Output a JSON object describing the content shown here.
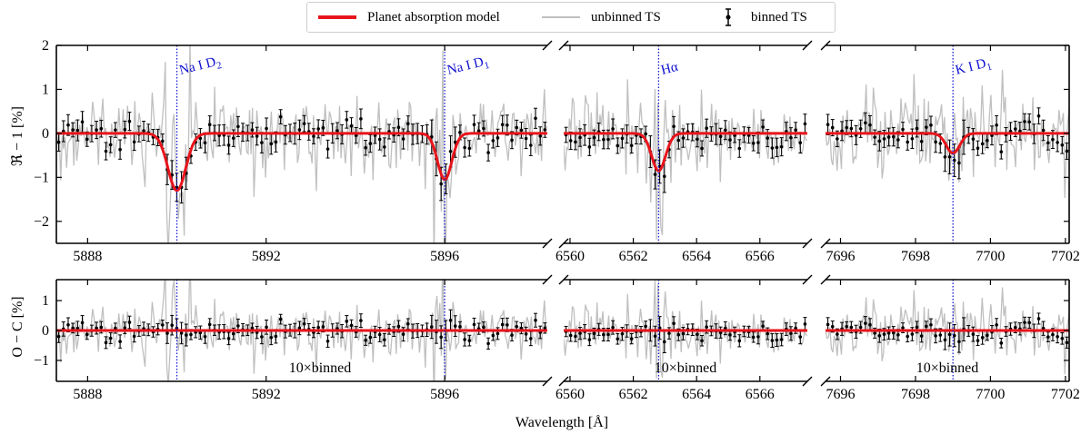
{
  "chart_data": {
    "type": "line",
    "legend": {
      "model": "Planet absorption model",
      "unbinned": "unbinned TS",
      "binned": "binned TS"
    },
    "colors": {
      "model": "#e8141b",
      "unbinned": "#c0c0c0",
      "binned": "#000000",
      "lines": "#1a1ad6",
      "axes": "#000000"
    },
    "xlabel": "Wavelength [Å]",
    "top_ylabel": "ℜ − 1 [%]",
    "bottom_ylabel": "O − C [%]",
    "top_ylim": [
      -2.5,
      2.0
    ],
    "top_yticks": [
      -2,
      -1,
      0,
      1,
      2
    ],
    "bottom_ylim": [
      -1.7,
      1.7
    ],
    "bottom_yticks": [
      -1,
      0,
      1
    ],
    "binned_note": "10×binned",
    "segments": [
      {
        "name": "sodium",
        "xlim": [
          5887.3,
          5898.3
        ],
        "xticks": [
          5888,
          5892,
          5896
        ],
        "lines": [
          {
            "x": 5890.0,
            "label_main": "Na I D",
            "label_sub": "2",
            "depth": -1.3,
            "sigma": 0.2
          },
          {
            "x": 5896.0,
            "label_main": "Na I D",
            "label_sub": "1",
            "depth": -1.05,
            "sigma": 0.16
          }
        ]
      },
      {
        "name": "halpha",
        "xlim": [
          6559.8,
          6567.5
        ],
        "xticks": [
          6560,
          6562,
          6564,
          6566
        ],
        "lines": [
          {
            "x": 6562.8,
            "label_main": "Hα",
            "label_sub": "",
            "depth": -0.85,
            "sigma": 0.22
          }
        ]
      },
      {
        "name": "potassium",
        "xlim": [
          7695.6,
          7702.1
        ],
        "xticks": [
          7696,
          7698,
          7700,
          7702
        ],
        "lines": [
          {
            "x": 7699.0,
            "label_main": "K I D",
            "label_sub": "1",
            "depth": -0.45,
            "sigma": 0.18
          }
        ]
      }
    ]
  }
}
